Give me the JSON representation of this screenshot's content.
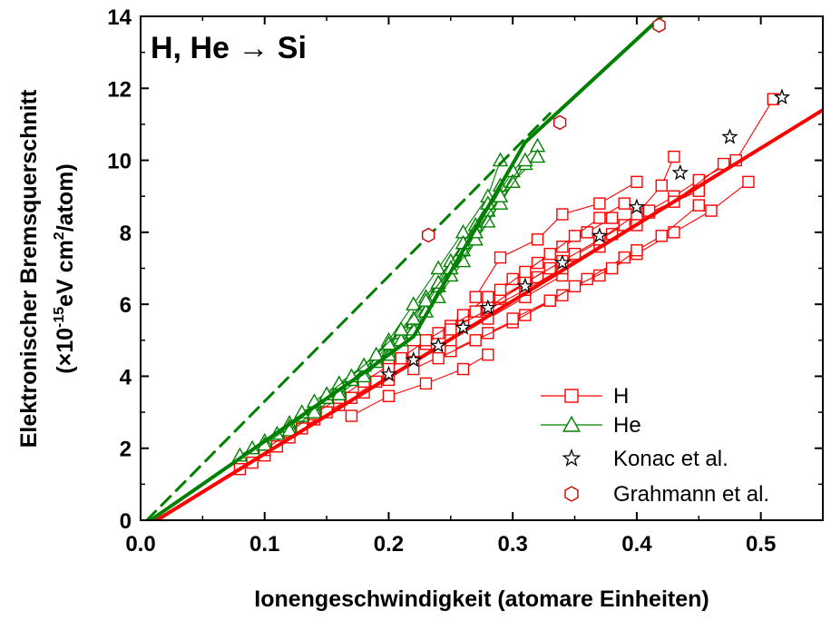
{
  "chart_data": {
    "type": "scatter",
    "title": "H, He → Si",
    "xlabel": "Ionengeschwindigkeit (atomare Einheiten)",
    "ylabel": {
      "line1": "Elektronischer Bremsquerschnitt",
      "line2_open": "(×10",
      "line2_exp1": "-15",
      "line2_mid": "eV cm",
      "line2_exp2": "2",
      "line2_close": "/atom)"
    },
    "xlim": [
      0.0,
      0.55
    ],
    "ylim": [
      0,
      14
    ],
    "xticks": [
      {
        "value": 0.0,
        "label": "0.0"
      },
      {
        "value": 0.1,
        "label": "0.1"
      },
      {
        "value": 0.2,
        "label": "0.2"
      },
      {
        "value": 0.3,
        "label": "0.3"
      },
      {
        "value": 0.4,
        "label": "0.4"
      },
      {
        "value": 0.5,
        "label": "0.5"
      }
    ],
    "yticks": [
      {
        "value": 0,
        "label": "0"
      },
      {
        "value": 2,
        "label": "2"
      },
      {
        "value": 4,
        "label": "4"
      },
      {
        "value": 6,
        "label": "6"
      },
      {
        "value": 8,
        "label": "8"
      },
      {
        "value": 10,
        "label": "10"
      },
      {
        "value": 12,
        "label": "12"
      },
      {
        "value": 14,
        "label": "14"
      }
    ],
    "colors": {
      "H": "#ff0000",
      "He": "#008000",
      "Konac": "#000000",
      "Grahmann": "#cc0000"
    },
    "legend": {
      "position": "bottom-right",
      "entries": [
        {
          "label": "H",
          "marker": "square",
          "color": "#ff0000"
        },
        {
          "label": "He",
          "marker": "triangle",
          "color": "#008000"
        },
        {
          "label": "Konac et al.",
          "marker": "star",
          "color": "#000000"
        },
        {
          "label": "Grahmann et al.",
          "marker": "hexagon",
          "color": "#cc0000"
        }
      ]
    },
    "series": [
      {
        "name": "H",
        "marker": "square",
        "color": "#ff0000",
        "connected": true,
        "runs": [
          [
            [
              0.08,
              1.42
            ],
            [
              0.1,
              1.8
            ],
            [
              0.12,
              2.3
            ],
            [
              0.14,
              2.8
            ],
            [
              0.16,
              3.2
            ],
            [
              0.18,
              3.55
            ],
            [
              0.2,
              3.9
            ]
          ],
          [
            [
              0.09,
              1.6
            ],
            [
              0.11,
              2.05
            ],
            [
              0.13,
              2.55
            ],
            [
              0.15,
              3.0
            ],
            [
              0.17,
              3.4
            ],
            [
              0.19,
              3.85
            ],
            [
              0.22,
              4.4
            ],
            [
              0.25,
              5.0
            ],
            [
              0.28,
              5.6
            ],
            [
              0.31,
              6.2
            ],
            [
              0.34,
              6.8
            ]
          ],
          [
            [
              0.1,
              1.95
            ],
            [
              0.12,
              2.45
            ],
            [
              0.14,
              2.95
            ],
            [
              0.16,
              3.4
            ],
            [
              0.18,
              3.85
            ],
            [
              0.2,
              4.3
            ],
            [
              0.23,
              4.9
            ],
            [
              0.26,
              5.55
            ],
            [
              0.29,
              6.15
            ],
            [
              0.32,
              6.75
            ],
            [
              0.35,
              7.35
            ],
            [
              0.38,
              7.95
            ],
            [
              0.41,
              8.55
            ],
            [
              0.45,
              9.15
            ]
          ],
          [
            [
              0.17,
              2.9
            ],
            [
              0.2,
              3.45
            ],
            [
              0.23,
              3.8
            ],
            [
              0.26,
              4.2
            ],
            [
              0.28,
              4.6
            ]
          ],
          [
            [
              0.2,
              4.2
            ],
            [
              0.22,
              4.7
            ],
            [
              0.24,
              5.2
            ],
            [
              0.26,
              5.7
            ],
            [
              0.28,
              6.2
            ],
            [
              0.3,
              6.7
            ],
            [
              0.32,
              7.15
            ],
            [
              0.34,
              7.6
            ],
            [
              0.36,
              8.0
            ],
            [
              0.38,
              8.4
            ]
          ],
          [
            [
              0.21,
              4.5
            ],
            [
              0.23,
              5.0
            ],
            [
              0.25,
              5.4
            ],
            [
              0.27,
              5.8
            ],
            [
              0.29,
              6.2
            ],
            [
              0.31,
              6.6
            ],
            [
              0.33,
              7.0
            ],
            [
              0.35,
              7.4
            ],
            [
              0.37,
              7.8
            ],
            [
              0.39,
              8.2
            ],
            [
              0.41,
              8.6
            ],
            [
              0.43,
              9.0
            ],
            [
              0.45,
              9.45
            ],
            [
              0.48,
              10.0
            ],
            [
              0.51,
              11.7
            ]
          ],
          [
            [
              0.22,
              4.2
            ],
            [
              0.25,
              4.7
            ],
            [
              0.28,
              5.2
            ],
            [
              0.31,
              5.7
            ],
            [
              0.34,
              6.25
            ],
            [
              0.37,
              6.8
            ],
            [
              0.4,
              7.4
            ],
            [
              0.43,
              8.0
            ],
            [
              0.46,
              8.6
            ],
            [
              0.49,
              9.4
            ]
          ],
          [
            [
              0.24,
              4.5
            ],
            [
              0.27,
              5.0
            ],
            [
              0.3,
              5.5
            ],
            [
              0.33,
              6.1
            ],
            [
              0.36,
              6.7
            ],
            [
              0.39,
              7.3
            ],
            [
              0.42,
              7.9
            ],
            [
              0.45,
              8.75
            ]
          ],
          [
            [
              0.25,
              5.3
            ],
            [
              0.28,
              5.85
            ],
            [
              0.31,
              6.4
            ],
            [
              0.34,
              7.0
            ],
            [
              0.37,
              7.6
            ],
            [
              0.4,
              8.2
            ],
            [
              0.43,
              8.85
            ],
            [
              0.47,
              9.9
            ]
          ],
          [
            [
              0.27,
              6.2
            ],
            [
              0.29,
              7.3
            ],
            [
              0.32,
              7.8
            ],
            [
              0.34,
              8.5
            ],
            [
              0.37,
              8.8
            ],
            [
              0.4,
              9.4
            ]
          ],
          [
            [
              0.28,
              5.9
            ],
            [
              0.31,
              6.6
            ],
            [
              0.34,
              7.2
            ],
            [
              0.37,
              7.8
            ],
            [
              0.4,
              8.5
            ],
            [
              0.42,
              9.3
            ],
            [
              0.43,
              10.1
            ]
          ],
          [
            [
              0.3,
              5.6
            ],
            [
              0.33,
              6.1
            ],
            [
              0.35,
              6.5
            ],
            [
              0.38,
              7.0
            ],
            [
              0.4,
              7.5
            ]
          ],
          [
            [
              0.29,
              6.4
            ],
            [
              0.31,
              6.9
            ],
            [
              0.33,
              7.4
            ],
            [
              0.35,
              7.9
            ],
            [
              0.37,
              8.4
            ],
            [
              0.39,
              8.8
            ]
          ]
        ]
      },
      {
        "name": "He",
        "marker": "triangle",
        "color": "#008000",
        "connected": true,
        "runs": [
          [
            [
              0.08,
              1.8
            ],
            [
              0.1,
              2.2
            ],
            [
              0.12,
              2.7
            ],
            [
              0.14,
              3.2
            ],
            [
              0.16,
              3.7
            ],
            [
              0.18,
              4.3
            ],
            [
              0.2,
              5.0
            ],
            [
              0.22,
              6.0
            ],
            [
              0.24,
              7.0
            ],
            [
              0.26,
              8.0
            ],
            [
              0.28,
              9.0
            ],
            [
              0.29,
              10.0
            ]
          ],
          [
            [
              0.09,
              2.0
            ],
            [
              0.11,
              2.4
            ],
            [
              0.13,
              2.9
            ],
            [
              0.15,
              3.4
            ],
            [
              0.17,
              3.9
            ],
            [
              0.19,
              4.5
            ],
            [
              0.21,
              5.2
            ],
            [
              0.23,
              6.2
            ],
            [
              0.25,
              7.2
            ],
            [
              0.27,
              8.2
            ],
            [
              0.29,
              9.3
            ]
          ],
          [
            [
              0.1,
              2.1
            ],
            [
              0.12,
              2.6
            ],
            [
              0.14,
              3.1
            ],
            [
              0.16,
              3.6
            ],
            [
              0.18,
              4.1
            ],
            [
              0.2,
              4.7
            ],
            [
              0.22,
              5.5
            ],
            [
              0.24,
              6.5
            ],
            [
              0.26,
              7.5
            ],
            [
              0.28,
              8.6
            ],
            [
              0.3,
              9.7
            ],
            [
              0.32,
              10.4
            ]
          ],
          [
            [
              0.12,
              2.5
            ],
            [
              0.14,
              3.0
            ],
            [
              0.16,
              3.5
            ],
            [
              0.18,
              4.0
            ],
            [
              0.2,
              4.6
            ],
            [
              0.22,
              5.3
            ],
            [
              0.24,
              6.2
            ],
            [
              0.26,
              7.2
            ],
            [
              0.28,
              8.3
            ],
            [
              0.3,
              9.4
            ],
            [
              0.32,
              10.1
            ]
          ],
          [
            [
              0.13,
              3.0
            ],
            [
              0.15,
              3.4
            ],
            [
              0.17,
              3.9
            ],
            [
              0.19,
              4.4
            ],
            [
              0.21,
              5.0
            ],
            [
              0.23,
              5.8
            ],
            [
              0.25,
              6.8
            ],
            [
              0.27,
              7.8
            ],
            [
              0.29,
              8.8
            ],
            [
              0.31,
              9.9
            ]
          ],
          [
            [
              0.14,
              3.3
            ],
            [
              0.16,
              3.8
            ],
            [
              0.18,
              4.3
            ],
            [
              0.2,
              4.9
            ],
            [
              0.22,
              5.6
            ],
            [
              0.24,
              6.6
            ],
            [
              0.26,
              7.7
            ],
            [
              0.28,
              8.8
            ]
          ],
          [
            [
              0.15,
              3.5
            ],
            [
              0.17,
              4.0
            ],
            [
              0.19,
              4.6
            ],
            [
              0.21,
              5.3
            ],
            [
              0.23,
              6.1
            ],
            [
              0.25,
              7.0
            ],
            [
              0.27,
              8.0
            ],
            [
              0.29,
              9.0
            ],
            [
              0.31,
              10.0
            ]
          ]
        ]
      },
      {
        "name": "Konac et al.",
        "marker": "star",
        "color": "#000000",
        "connected": false,
        "points": [
          [
            0.2,
            4.05
          ],
          [
            0.22,
            4.45
          ],
          [
            0.24,
            4.85
          ],
          [
            0.26,
            5.35
          ],
          [
            0.28,
            5.9
          ],
          [
            0.31,
            6.5
          ],
          [
            0.34,
            7.15
          ],
          [
            0.37,
            7.9
          ],
          [
            0.4,
            8.7
          ],
          [
            0.435,
            9.65
          ],
          [
            0.475,
            10.65
          ],
          [
            0.517,
            11.75
          ]
        ]
      },
      {
        "name": "Grahmann et al.",
        "marker": "hexagon",
        "color": "#cc0000",
        "connected": false,
        "points": [
          [
            0.232,
            7.92
          ],
          [
            0.338,
            11.05
          ],
          [
            0.418,
            13.75
          ]
        ]
      }
    ],
    "fit_lines": [
      {
        "color": "#ff0000",
        "style": "solid",
        "width": 4,
        "points": [
          [
            0.013,
            0.0
          ],
          [
            0.55,
            11.4
          ]
        ]
      },
      {
        "color": "#008000",
        "style": "solid",
        "width": 4,
        "points": [
          [
            0.008,
            0.0
          ],
          [
            0.18,
            4.1
          ],
          [
            0.22,
            5.1
          ],
          [
            0.31,
            10.5
          ],
          [
            0.42,
            14.0
          ]
        ]
      },
      {
        "color": "#008000",
        "style": "dashed",
        "width": 3,
        "points": [
          [
            0.005,
            0.0
          ],
          [
            0.33,
            11.3
          ]
        ]
      }
    ]
  }
}
